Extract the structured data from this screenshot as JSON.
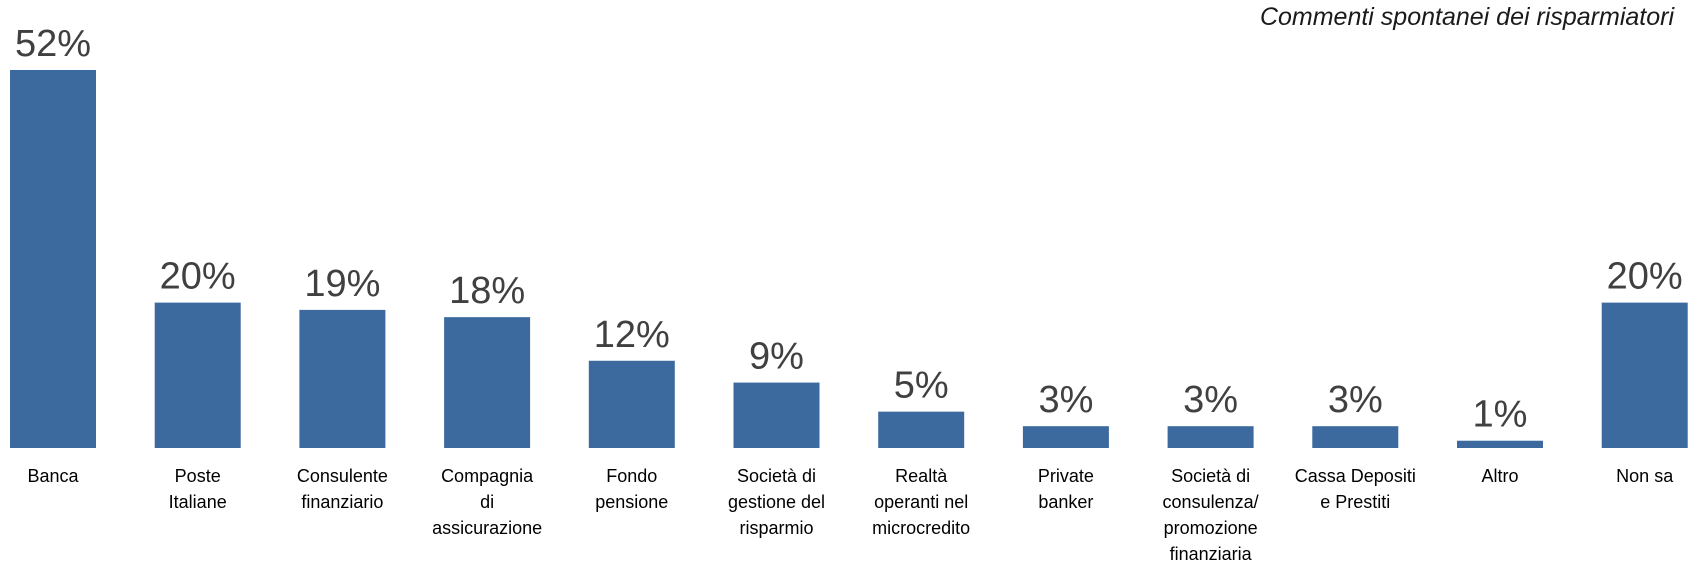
{
  "chart_data": {
    "type": "bar",
    "subtitle": "Commenti spontanei dei risparmiatori",
    "categories": [
      [
        "Banca"
      ],
      [
        "Poste",
        "Italiane"
      ],
      [
        "Consulente",
        "finanziario"
      ],
      [
        "Compagnia",
        "di",
        "assicurazione"
      ],
      [
        "Fondo",
        "pensione"
      ],
      [
        "Società di",
        "gestione del",
        "risparmio"
      ],
      [
        "Realtà",
        "operanti nel",
        "microcredito"
      ],
      [
        "Private",
        "banker"
      ],
      [
        "Società di",
        "consulenza/",
        "promozione",
        "finanziaria"
      ],
      [
        "Cassa Depositi",
        "e Prestiti"
      ],
      [
        "Altro"
      ],
      [
        "Non sa"
      ]
    ],
    "values": [
      52,
      20,
      19,
      18,
      12,
      9,
      5,
      3,
      3,
      3,
      1,
      20
    ],
    "value_labels": [
      "52%",
      "20%",
      "19%",
      "18%",
      "12%",
      "9%",
      "5%",
      "3%",
      "3%",
      "3%",
      "1%",
      "20%"
    ],
    "ylim": [
      0,
      52
    ],
    "grid": false,
    "legend": "none",
    "colors": {
      "bar": "#3D6A9E",
      "value_text": "#404040",
      "category_text": "#000000"
    }
  }
}
